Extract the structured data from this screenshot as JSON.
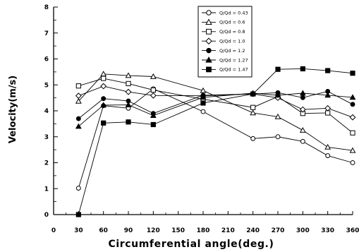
{
  "chart_data": {
    "type": "line",
    "title": "",
    "xlabel": "Circumferential angle(deg.)",
    "ylabel": "Velocity(m/s)",
    "xlim": [
      0,
      360
    ],
    "ylim": [
      0,
      8
    ],
    "x_ticks": [
      "0",
      "30",
      "60",
      "90",
      "120",
      "150",
      "180",
      "210",
      "240",
      "270",
      "300",
      "330",
      "360"
    ],
    "y_ticks": [
      "0",
      "1",
      "2",
      "3",
      "4",
      "5",
      "6",
      "7",
      "8"
    ],
    "grid": false,
    "legend_position": "top-right",
    "x": [
      30,
      60,
      90,
      120,
      180,
      240,
      270,
      300,
      330,
      360
    ],
    "series": [
      {
        "name": "Q/Qd = 0.43",
        "marker": "circle-open",
        "values": [
          1.02,
          4.2,
          4.1,
          4.85,
          3.97,
          2.93,
          3.0,
          2.82,
          2.27,
          2.0
        ]
      },
      {
        "name": "Q/Qd = 0.6",
        "marker": "triangle-open",
        "values": [
          4.37,
          5.42,
          5.36,
          5.32,
          4.78,
          3.92,
          3.77,
          3.25,
          2.6,
          2.47
        ]
      },
      {
        "name": "Q/Qd = 0.8",
        "marker": "square-open",
        "values": [
          4.96,
          5.25,
          5.05,
          4.8,
          4.45,
          4.13,
          4.55,
          3.9,
          3.92,
          3.15
        ]
      },
      {
        "name": "Q/Qd = 1.0",
        "marker": "diamond-open",
        "values": [
          4.58,
          4.95,
          4.73,
          4.59,
          4.58,
          4.65,
          4.5,
          4.05,
          4.1,
          3.75
        ]
      },
      {
        "name": "Q/Qd = 1.2",
        "marker": "circle-filled",
        "values": [
          3.7,
          4.47,
          4.38,
          3.9,
          4.6,
          4.65,
          4.7,
          4.51,
          4.75,
          4.25
        ]
      },
      {
        "name": "Q/Qd = 1.27",
        "marker": "triangle-filled",
        "values": [
          3.4,
          4.22,
          4.23,
          3.82,
          4.52,
          4.68,
          4.6,
          4.68,
          4.6,
          4.52
        ]
      },
      {
        "name": "Q/Qd = 1.47",
        "marker": "square-filled",
        "values": [
          0.0,
          3.53,
          3.57,
          3.47,
          4.3,
          4.65,
          5.6,
          5.62,
          5.55,
          5.45
        ]
      }
    ]
  }
}
